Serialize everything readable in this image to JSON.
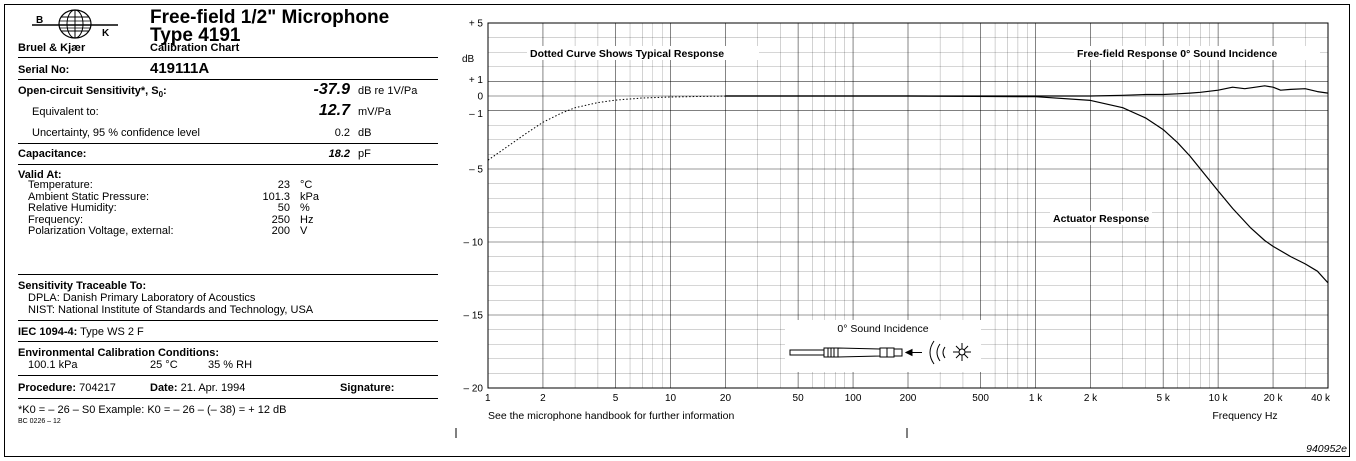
{
  "header": {
    "logo_text_b": "B",
    "logo_text_k": "K",
    "company": "Bruel & Kjær",
    "title_line1": "Free-field 1/2\" Microphone",
    "title_line2": "Type 4191",
    "subtitle": "Calibration Chart"
  },
  "serial": {
    "label": "Serial No:",
    "value": "419111A"
  },
  "sensitivity": {
    "label": "Open-circuit Sensitivity*, S",
    "label_sub": "0",
    "label_tail": ":",
    "value": "-37.9",
    "unit": "dB re 1V/Pa",
    "equiv_label": "Equivalent to:",
    "equiv_value": "12.7",
    "equiv_unit": "mV/Pa",
    "uncert_label": "Uncertainty, 95 % confidence level",
    "uncert_value": "0.2",
    "uncert_unit": "dB"
  },
  "capacitance": {
    "label": "Capacitance:",
    "value": "18.2",
    "unit": "pF"
  },
  "valid_at": {
    "label": "Valid At:",
    "rows": [
      {
        "name": "Temperature:",
        "value": "23",
        "unit": "°C"
      },
      {
        "name": "Ambient Static Pressure:",
        "value": "101.3",
        "unit": "kPa"
      },
      {
        "name": "Relative Humidity:",
        "value": "50",
        "unit": "%"
      },
      {
        "name": "Frequency:",
        "value": "250",
        "unit": "Hz"
      },
      {
        "name": "Polarization Voltage, external:",
        "value": "200",
        "unit": "V"
      }
    ]
  },
  "traceable": {
    "label": "Sensitivity Traceable To:",
    "line1": "DPLA: Danish Primary Laboratory of Acoustics",
    "line2": "NIST:  National Institute of Standards and Technology, USA"
  },
  "iec": {
    "label": "IEC 1094-4:",
    "value": "Type WS 2 F"
  },
  "env": {
    "label": "Environmental Calibration Conditions:",
    "pressure": "100.1 kPa",
    "temp": "25 °C",
    "rh": "35 % RH"
  },
  "procedure": {
    "label": "Procedure:",
    "value": "704217",
    "date_label": "Date:",
    "date_value": "21. Apr. 1994",
    "signature_label": "Signature:"
  },
  "footnote": {
    "text": "*K0 = – 26 – S0  Example: K0 = – 26 – (– 38) = + 12 dB",
    "code": "BC 0226 – 12"
  },
  "figure_code": "940952e",
  "chart_data": {
    "type": "line",
    "x_scale": "log",
    "xlim": [
      1,
      40000
    ],
    "ylim": [
      -20,
      5
    ],
    "ylabel": "dB",
    "xlabel": "Frequency Hz",
    "y_ticks": [
      "+ 5",
      "+ 1",
      "0",
      "– 1",
      "– 5",
      "– 10",
      "– 15",
      "– 20"
    ],
    "y_tick_values": [
      5,
      1,
      0,
      -1,
      -5,
      -10,
      -15,
      -20
    ],
    "x_ticks": [
      "1",
      "2",
      "5",
      "10",
      "20",
      "50",
      "100",
      "200",
      "500",
      "1 k",
      "2 k",
      "5 k",
      "10 k",
      "20 k",
      "40 k"
    ],
    "x_tick_values": [
      1,
      2,
      5,
      10,
      20,
      50,
      100,
      200,
      500,
      1000,
      2000,
      5000,
      10000,
      20000,
      40000
    ],
    "grid": true,
    "annotations": {
      "dotted_note": "Dotted Curve Shows Typical Response",
      "freefield_note": "Free-field Response 0° Sound Incidence",
      "actuator_note": "Actuator Response",
      "incidence_label": "0° Sound Incidence",
      "handbook_note": "See the microphone handbook for further information"
    },
    "series": [
      {
        "name": "Dotted Curve Shows Typical Response",
        "style": "dotted",
        "x": [
          1,
          1.3,
          1.6,
          2,
          2.5,
          3,
          4,
          5,
          7,
          10,
          15,
          20
        ],
        "y": [
          -4.4,
          -3.4,
          -2.6,
          -1.8,
          -1.2,
          -0.8,
          -0.45,
          -0.28,
          -0.14,
          -0.07,
          -0.03,
          -0.01
        ]
      },
      {
        "name": "Free-field Response 0° Sound Incidence",
        "style": "solid",
        "x": [
          20,
          100,
          500,
          1000,
          2000,
          3000,
          4000,
          5000,
          6000,
          7000,
          8000,
          10000,
          12000,
          14000,
          16000,
          18000,
          20000,
          22000,
          25000,
          30000,
          35000,
          40000
        ],
        "y": [
          0,
          0,
          0,
          0,
          0,
          0.05,
          0.1,
          0.1,
          0.15,
          0.2,
          0.25,
          0.4,
          0.6,
          0.5,
          0.6,
          0.7,
          0.6,
          0.4,
          0.45,
          0.5,
          0.3,
          0.2
        ]
      },
      {
        "name": "Actuator Response",
        "style": "solid",
        "x": [
          20,
          200,
          1000,
          2000,
          3000,
          4000,
          5000,
          6000,
          7000,
          8000,
          10000,
          12000,
          15000,
          18000,
          20000,
          25000,
          30000,
          35000,
          40000
        ],
        "y": [
          0,
          0,
          -0.05,
          -0.3,
          -0.8,
          -1.5,
          -2.3,
          -3.2,
          -4.1,
          -5.0,
          -6.5,
          -7.7,
          -9.0,
          -9.9,
          -10.3,
          -11.0,
          -11.5,
          -12.0,
          -12.8
        ]
      }
    ]
  }
}
